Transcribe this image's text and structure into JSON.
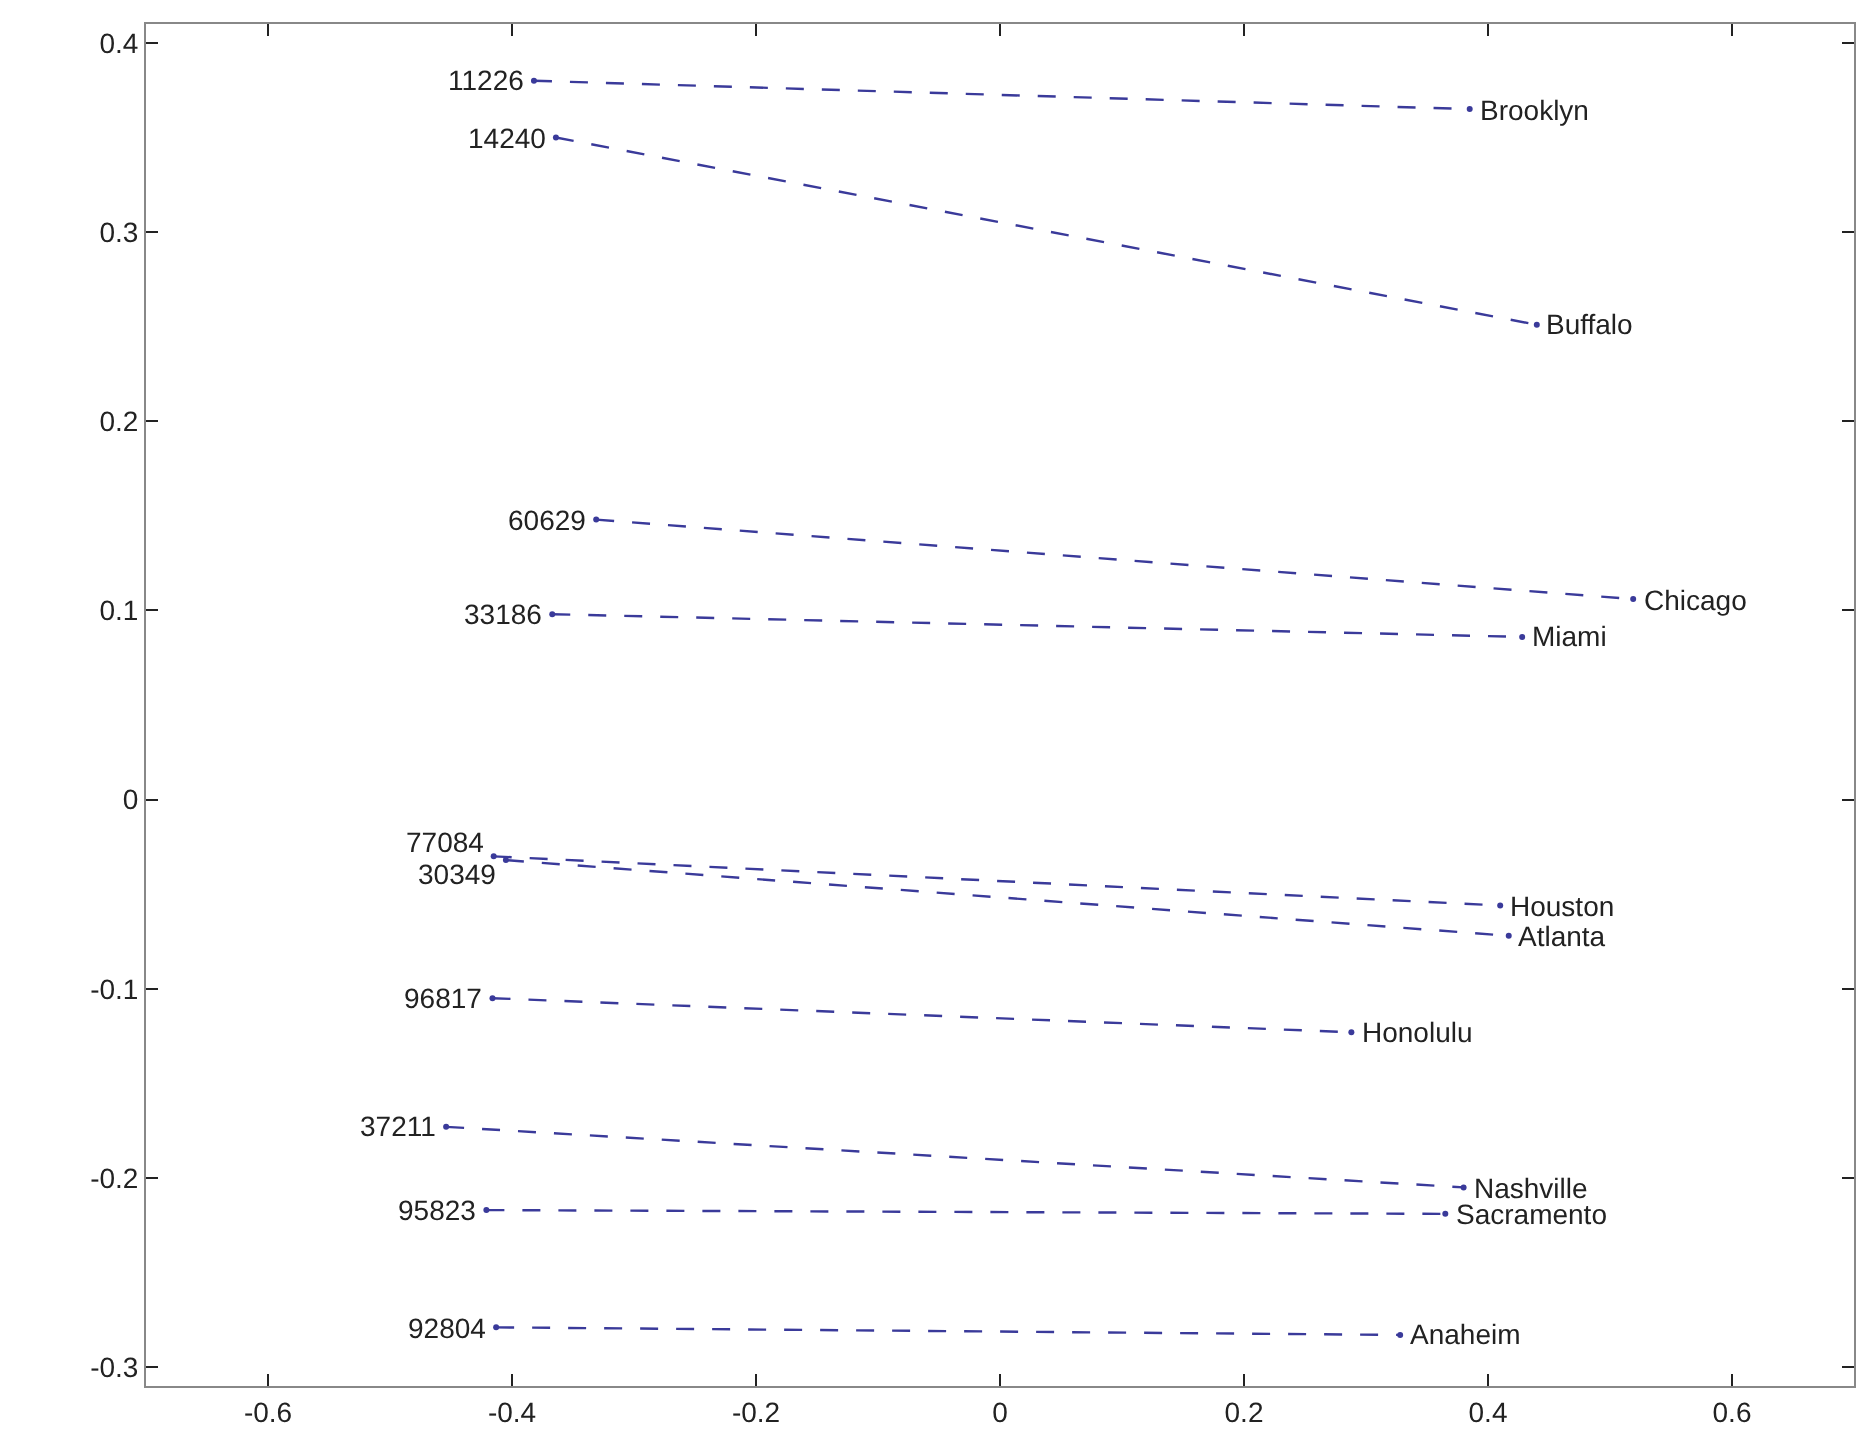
{
  "chart_data": {
    "type": "line",
    "line_style": "dashed",
    "marker": "circle",
    "xlim": [
      -0.7,
      0.7
    ],
    "ylim": [
      -0.31,
      0.41
    ],
    "xticks": [
      -0.6,
      -0.4,
      -0.2,
      0,
      0.2,
      0.4,
      0.6
    ],
    "yticks": [
      -0.3,
      -0.2,
      -0.1,
      0,
      0.1,
      0.2,
      0.3,
      0.4
    ],
    "series": [
      {
        "color": "#3a3a9a",
        "x": [
          -0.382,
          0.385
        ],
        "values": [
          0.38,
          0.365
        ]
      },
      {
        "color": "#3a3a9a",
        "x": [
          -0.364,
          0.44
        ],
        "values": [
          0.35,
          0.251
        ]
      },
      {
        "color": "#3a3a9a",
        "x": [
          -0.331,
          0.519
        ],
        "values": [
          0.148,
          0.106
        ]
      },
      {
        "color": "#3a3a9a",
        "x": [
          -0.367,
          0.428
        ],
        "values": [
          0.098,
          0.086
        ]
      },
      {
        "color": "#3a3a9a",
        "x": [
          -0.415,
          0.41
        ],
        "values": [
          -0.03,
          -0.056
        ]
      },
      {
        "color": "#3a3a9a",
        "x": [
          -0.405,
          0.417
        ],
        "values": [
          -0.032,
          -0.072
        ]
      },
      {
        "color": "#3a3a9a",
        "x": [
          -0.416,
          0.288
        ],
        "values": [
          -0.105,
          -0.123
        ]
      },
      {
        "color": "#3a3a9a",
        "x": [
          -0.454,
          0.38
        ],
        "values": [
          -0.173,
          -0.205
        ]
      },
      {
        "color": "#3a3a9a",
        "x": [
          -0.421,
          0.365
        ],
        "values": [
          -0.217,
          -0.219
        ]
      },
      {
        "color": "#3a3a9a",
        "x": [
          -0.413,
          0.328
        ],
        "values": [
          -0.279,
          -0.283
        ]
      }
    ],
    "annotations": [
      {
        "text": "11226",
        "x": -0.382,
        "y": 0.38
      },
      {
        "text": "Brooklyn",
        "x": 0.385,
        "y": 0.365
      },
      {
        "text": "14240",
        "x": -0.364,
        "y": 0.35
      },
      {
        "text": "Buffalo",
        "x": 0.44,
        "y": 0.251
      },
      {
        "text": "60629",
        "x": -0.331,
        "y": 0.148
      },
      {
        "text": "Chicago",
        "x": 0.519,
        "y": 0.106
      },
      {
        "text": "33186",
        "x": -0.367,
        "y": 0.098
      },
      {
        "text": "Miami",
        "x": 0.428,
        "y": 0.086
      },
      {
        "text": "77084",
        "x": -0.415,
        "y": -0.03
      },
      {
        "text": "Houston",
        "x": 0.41,
        "y": -0.056
      },
      {
        "text": "30349",
        "x": -0.405,
        "y": -0.032
      },
      {
        "text": "Atlanta",
        "x": 0.417,
        "y": -0.072
      },
      {
        "text": "96817",
        "x": -0.416,
        "y": -0.105
      },
      {
        "text": "Honolulu",
        "x": 0.288,
        "y": -0.123
      },
      {
        "text": "37211",
        "x": -0.454,
        "y": -0.173
      },
      {
        "text": "Nashville",
        "x": 0.38,
        "y": -0.205
      },
      {
        "text": "95823",
        "x": -0.421,
        "y": -0.217
      },
      {
        "text": "Sacramento",
        "x": 0.365,
        "y": -0.219
      },
      {
        "text": "92804",
        "x": -0.413,
        "y": -0.279
      },
      {
        "text": "Anaheim",
        "x": 0.328,
        "y": -0.283
      }
    ]
  }
}
